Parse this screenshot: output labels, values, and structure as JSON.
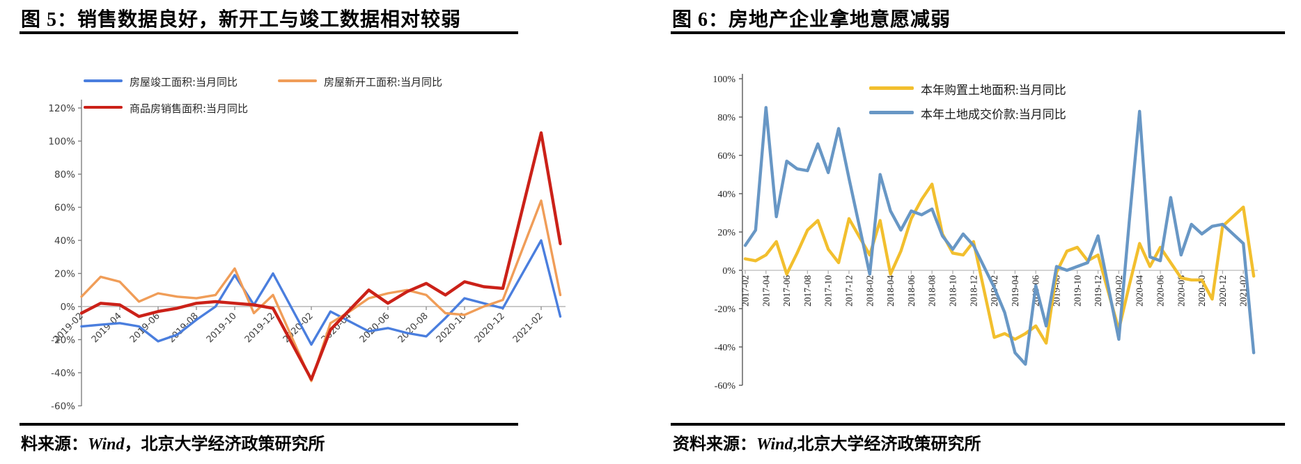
{
  "figures": [
    {
      "title": "图 5：销售数据良好，新开工与竣工数据相对较弱",
      "source_parts": [
        "料来源：",
        "Wind",
        "，北京大学经济政策研究所"
      ]
    },
    {
      "title": "图 6：房地产企业拿地意愿减弱",
      "source_parts": [
        "资料来源：",
        "Wind",
        ",北京大学经济政策研究所"
      ]
    }
  ],
  "chart_data": [
    {
      "type": "line",
      "title": "图 5：销售数据良好，新开工与竣工数据相对较弱",
      "x": [
        "2019-02",
        "2019-03",
        "2019-04",
        "2019-05",
        "2019-06",
        "2019-07",
        "2019-08",
        "2019-09",
        "2019-10",
        "2019-11",
        "2019-12",
        "2020-01",
        "2020-02",
        "2020-03",
        "2020-04",
        "2020-05",
        "2020-06",
        "2020-07",
        "2020-08",
        "2020-09",
        "2020-10",
        "2020-11",
        "2020-12",
        "2021-01",
        "2021-02",
        "2021-03"
      ],
      "xtick_every": 2,
      "ylabel": "",
      "xlabel": "",
      "ylim": [
        -60,
        120
      ],
      "ytick_step": 20,
      "ytick_suffix": "%",
      "grid": false,
      "legend_position": "top",
      "series": [
        {
          "name": "房屋竣工面积:当月同比",
          "color": "#4a7ede",
          "values": [
            -12,
            -11,
            -10,
            -12,
            -21,
            -17,
            -8,
            0,
            19,
            1,
            20,
            null,
            -23,
            -3,
            -9,
            -15,
            -13,
            -16,
            -18,
            -7,
            5,
            2,
            -1,
            null,
            40,
            -6
          ]
        },
        {
          "name": "房屋新开工面积:当月同比",
          "color": "#f09d58",
          "values": [
            6,
            18,
            15,
            3,
            8,
            6,
            5,
            7,
            23,
            -4,
            7,
            null,
            -45,
            -10,
            -3,
            5,
            8,
            10,
            7,
            -4,
            -5,
            0,
            4,
            null,
            64,
            7
          ]
        },
        {
          "name": "商品房销售面积:当月同比",
          "color": "#cb2118",
          "values": [
            -4,
            2,
            1,
            -6,
            -3,
            -1,
            2,
            3,
            2,
            1,
            -1,
            null,
            -44,
            -14,
            -2,
            10,
            2,
            9,
            14,
            7,
            15,
            12,
            11,
            null,
            105,
            38
          ]
        }
      ]
    },
    {
      "type": "line",
      "title": "图 6：房地产企业拿地意愿减弱",
      "x": [
        "2017-02",
        "2017-03",
        "2017-04",
        "2017-05",
        "2017-06",
        "2017-07",
        "2017-08",
        "2017-09",
        "2017-10",
        "2017-11",
        "2017-12",
        "2018-01",
        "2018-02",
        "2018-03",
        "2018-04",
        "2018-05",
        "2018-06",
        "2018-07",
        "2018-08",
        "2018-09",
        "2018-10",
        "2018-11",
        "2018-12",
        "2019-01",
        "2019-02",
        "2019-03",
        "2019-04",
        "2019-05",
        "2019-06",
        "2019-07",
        "2019-08",
        "2019-09",
        "2019-10",
        "2019-11",
        "2019-12",
        "2020-01",
        "2020-02",
        "2020-03",
        "2020-04",
        "2020-05",
        "2020-06",
        "2020-07",
        "2020-08",
        "2020-09",
        "2020-10",
        "2020-11",
        "2020-12",
        "2021-01",
        "2021-02",
        "2021-03"
      ],
      "xtick_every": 2,
      "ylabel": "",
      "xlabel": "",
      "ylim": [
        -60,
        100
      ],
      "ytick_step": 20,
      "ytick_suffix": "%",
      "grid": false,
      "legend_position": "top",
      "series": [
        {
          "name": "本年购置土地面积:当月同比",
          "color": "#f2bf2e",
          "values": [
            6,
            5,
            8,
            15,
            -2,
            9,
            21,
            26,
            11,
            4,
            27,
            null,
            8,
            26,
            -2,
            10,
            27,
            37,
            45,
            19,
            9,
            8,
            15,
            null,
            -35,
            -33,
            -36,
            -33,
            -29,
            -38,
            -1,
            10,
            12,
            5,
            8,
            null,
            -31,
            -8,
            14,
            2,
            12,
            4,
            -4,
            -5,
            -5,
            -15,
            23,
            null,
            33,
            -3
          ]
        },
        {
          "name": "本年土地成交价款:当月同比",
          "color": "#6897c5",
          "values": [
            13,
            21,
            85,
            28,
            57,
            53,
            52,
            66,
            51,
            74,
            48,
            null,
            -2,
            50,
            31,
            21,
            31,
            29,
            32,
            18,
            11,
            19,
            13,
            null,
            -9,
            -22,
            -43,
            -49,
            -8,
            -29,
            2,
            0,
            2,
            4,
            18,
            null,
            -36,
            25,
            83,
            7,
            5,
            38,
            8,
            24,
            19,
            23,
            24,
            null,
            14,
            -43
          ]
        }
      ]
    }
  ]
}
